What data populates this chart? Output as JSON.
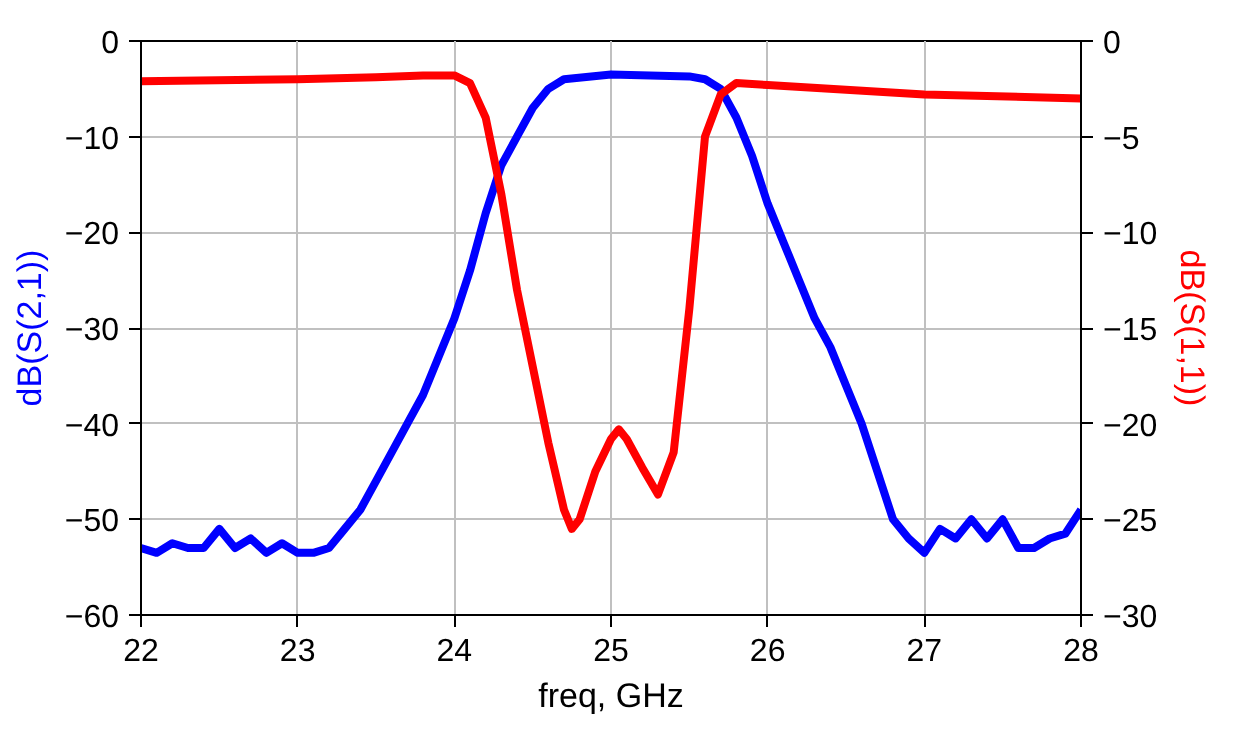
{
  "chart_data": {
    "type": "line",
    "xlabel": "freq, GHz",
    "ylabel": "dB(S(2,1))",
    "y2label": "dB(S(1,1))",
    "xlim": [
      22,
      28
    ],
    "xticks": [
      22,
      23,
      24,
      25,
      26,
      27,
      28
    ],
    "ylim": [
      -60,
      0
    ],
    "yticks": [
      -60,
      -50,
      -40,
      -30,
      -20,
      -10,
      0
    ],
    "y2lim": [
      -30,
      0
    ],
    "y2ticks": [
      -30,
      -25,
      -20,
      -15,
      -10,
      -5,
      0
    ],
    "grid": true,
    "series": [
      {
        "color": "#0000ff",
        "x": [
          22.0,
          22.1,
          22.2,
          22.3,
          22.4,
          22.5,
          22.6,
          22.7,
          22.8,
          22.9,
          23.0,
          23.1,
          23.2,
          23.3,
          23.4,
          23.5,
          23.6,
          23.7,
          23.8,
          23.9,
          24.0,
          24.1,
          24.2,
          24.3,
          24.4,
          24.5,
          24.6,
          24.7,
          25.0,
          25.5,
          25.6,
          25.7,
          25.8,
          25.9,
          26.0,
          26.1,
          26.2,
          26.3,
          26.4,
          26.5,
          26.6,
          26.7,
          26.8,
          26.9,
          27.0,
          27.1,
          27.2,
          27.3,
          27.4,
          27.5,
          27.6,
          27.7,
          27.8,
          27.9,
          28.0
        ],
        "values": [
          -53,
          -53.5,
          -52.5,
          -53,
          -53,
          -51,
          -53,
          -52,
          -53.5,
          -52.5,
          -53.5,
          -53.5,
          -53,
          -51,
          -49,
          -46,
          -43,
          -40,
          -37,
          -33,
          -29,
          -24,
          -18,
          -13,
          -10,
          -7,
          -5,
          -4,
          -3.5,
          -3.7,
          -4,
          -5,
          -8,
          -12,
          -17,
          -21,
          -25,
          -29,
          -32,
          -36,
          -40,
          -45,
          -50,
          -52,
          -53.5,
          -51,
          -52,
          -50,
          -52,
          -50,
          -53,
          -53,
          -52,
          -51.5,
          -49
        ]
      },
      {
        "color": "#ff0000",
        "axis": "y2",
        "x": [
          22.0,
          23.0,
          23.5,
          23.8,
          24.0,
          24.1,
          24.2,
          24.3,
          24.4,
          24.5,
          24.6,
          24.7,
          24.75,
          24.8,
          24.9,
          25.0,
          25.05,
          25.1,
          25.2,
          25.3,
          25.4,
          25.5,
          25.6,
          25.7,
          25.8,
          26.0,
          27.0,
          28.0
        ],
        "values": [
          -2.1,
          -2.0,
          -1.9,
          -1.8,
          -1.8,
          -2.2,
          -4,
          -8,
          -13,
          -17,
          -21,
          -24.5,
          -25.5,
          -25,
          -22.5,
          -20.8,
          -20.3,
          -20.8,
          -22.3,
          -23.7,
          -21.5,
          -14,
          -5,
          -2.8,
          -2.2,
          -2.3,
          -2.8,
          -3.0
        ]
      }
    ]
  }
}
